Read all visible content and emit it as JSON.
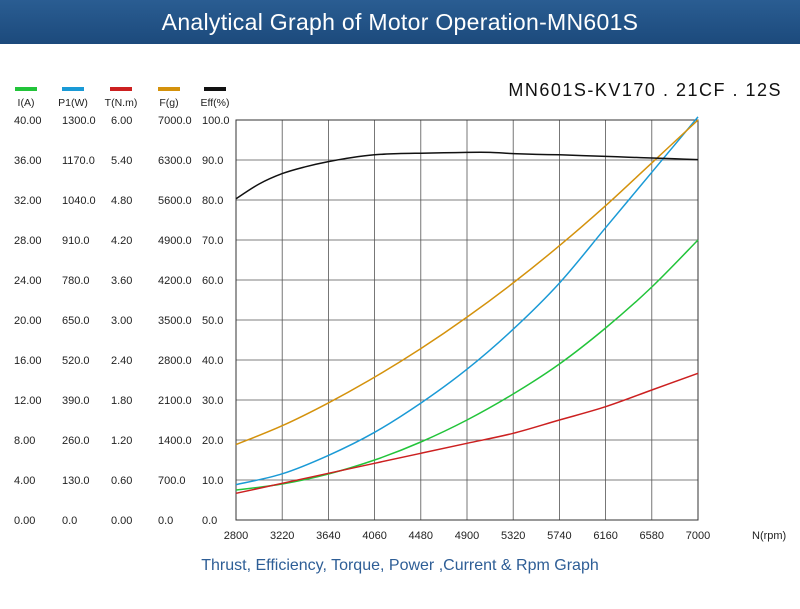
{
  "header": {
    "title": "Analytical Graph of Motor Operation-MN601S"
  },
  "model_label": "MN601S-KV170 . 21CF . 12S",
  "footer": {
    "caption": "Thrust, Efficiency, Torque, Power ,Current & Rpm Graph"
  },
  "chart_data": {
    "type": "line",
    "title": "Analytical Graph of Motor Operation-MN601S",
    "xlabel": "N(rpm)",
    "x_ticks": [
      "2800",
      "3220",
      "3640",
      "4060",
      "4480",
      "4900",
      "5320",
      "5740",
      "6160",
      "6580",
      "7000"
    ],
    "xlim": [
      2800,
      7000
    ],
    "grid": true,
    "legend_position": "top-left",
    "axes": [
      {
        "name": "I(A)",
        "color": "#22c43a",
        "ticks": [
          "0.00",
          "4.00",
          "8.00",
          "12.00",
          "16.00",
          "20.00",
          "24.00",
          "28.00",
          "32.00",
          "36.00",
          "40.00"
        ],
        "ylim": [
          0,
          40
        ]
      },
      {
        "name": "P1(W)",
        "color": "#1a9ad6",
        "ticks": [
          "0.0",
          "130.0",
          "260.0",
          "390.0",
          "520.0",
          "650.0",
          "780.0",
          "910.0",
          "1040.0",
          "1170.0",
          "1300.0"
        ],
        "ylim": [
          0,
          1300
        ]
      },
      {
        "name": "T(N.m)",
        "color": "#cc2020",
        "ticks": [
          "0.00",
          "0.60",
          "1.20",
          "1.80",
          "2.40",
          "3.00",
          "3.60",
          "4.20",
          "4.80",
          "5.40",
          "6.00"
        ],
        "ylim": [
          0,
          6
        ]
      },
      {
        "name": "F(g)",
        "color": "#d4920c",
        "ticks": [
          "0.0",
          "700.0",
          "1400.0",
          "2100.0",
          "2800.0",
          "3500.0",
          "4200.0",
          "4900.0",
          "5600.0",
          "6300.0",
          "7000.0"
        ],
        "ylim": [
          0,
          7000
        ]
      },
      {
        "name": "Eff(%)",
        "color": "#111111",
        "ticks": [
          "0.0",
          "10.0",
          "20.0",
          "30.0",
          "40.0",
          "50.0",
          "60.0",
          "70.0",
          "80.0",
          "90.0",
          "100.0"
        ],
        "ylim": [
          0,
          100
        ]
      }
    ],
    "series": [
      {
        "name": "I(A)",
        "axis": 0,
        "x": [
          2800,
          3220,
          3640,
          4060,
          4480,
          4900,
          5320,
          5740,
          6160,
          6580,
          7000
        ],
        "y": [
          3.0,
          3.6,
          4.6,
          6.0,
          7.8,
          10.0,
          12.6,
          15.6,
          19.2,
          23.3,
          28.0
        ]
      },
      {
        "name": "P1(W)",
        "axis": 1,
        "x": [
          2800,
          3220,
          3640,
          4060,
          4480,
          4900,
          5320,
          5740,
          6160,
          6580,
          7000
        ],
        "y": [
          115,
          150,
          210,
          285,
          380,
          490,
          620,
          770,
          950,
          1130,
          1310
        ]
      },
      {
        "name": "T(N.m)",
        "axis": 2,
        "x": [
          2800,
          3220,
          3640,
          4060,
          4480,
          4900,
          5320,
          5740,
          6160,
          6580,
          7000
        ],
        "y": [
          0.4,
          0.55,
          0.7,
          0.85,
          1.0,
          1.15,
          1.3,
          1.5,
          1.7,
          1.95,
          2.2
        ]
      },
      {
        "name": "F(g)",
        "axis": 3,
        "x": [
          2800,
          3220,
          3640,
          4060,
          4480,
          4900,
          5320,
          5740,
          6160,
          6580,
          7000
        ],
        "y": [
          1320,
          1650,
          2050,
          2500,
          3000,
          3550,
          4150,
          4800,
          5500,
          6250,
          7000
        ]
      },
      {
        "name": "Eff(%)",
        "axis": 4,
        "x": [
          2800,
          3010,
          3220,
          3430,
          3640,
          3850,
          4060,
          4270,
          4480,
          4690,
          4900,
          5110,
          5320,
          5530,
          5740,
          5950,
          6160,
          6370,
          6580,
          6790,
          7000
        ],
        "y": [
          80.3,
          84.0,
          86.6,
          88.3,
          89.6,
          90.6,
          91.3,
          91.6,
          91.7,
          91.8,
          91.9,
          91.9,
          91.6,
          91.4,
          91.3,
          91.1,
          90.9,
          90.7,
          90.5,
          90.3,
          90.1
        ]
      }
    ]
  }
}
